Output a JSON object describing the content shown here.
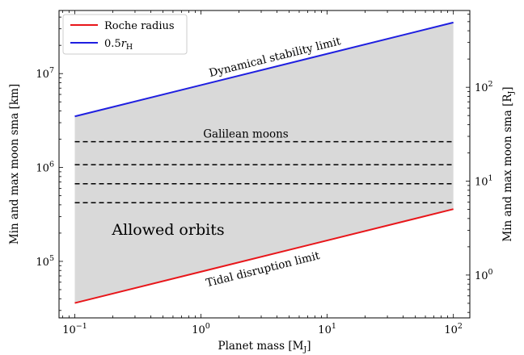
{
  "chart_data": {
    "type": "line",
    "x_scale": "log",
    "y_scale": "log",
    "xlim": [
      0.075,
      135
    ],
    "ylim": [
      25000,
      47000000
    ],
    "y2lim": [
      0.3497,
      657.5
    ],
    "xlabel": "Planet mass [M",
    "xlabel_sub": "J",
    "xlabel_close": "]",
    "ylabel": "Min and max moon sma [km]",
    "y2label": "Min and max moon sma [R",
    "y2label_sub": "J",
    "y2label_close": "]",
    "x_ticks": [
      {
        "value": 0.1,
        "base": "10",
        "exp": "−1"
      },
      {
        "value": 1,
        "base": "10",
        "exp": "0"
      },
      {
        "value": 10,
        "base": "10",
        "exp": "1"
      },
      {
        "value": 100,
        "base": "10",
        "exp": "2"
      }
    ],
    "y_ticks": [
      {
        "value": 100000,
        "base": "10",
        "exp": "5"
      },
      {
        "value": 1000000,
        "base": "10",
        "exp": "6"
      },
      {
        "value": 10000000,
        "base": "10",
        "exp": "7"
      }
    ],
    "y2_ticks": [
      {
        "value": 1,
        "base": "10",
        "exp": "0"
      },
      {
        "value": 10,
        "base": "10",
        "exp": "1"
      },
      {
        "value": 100,
        "base": "10",
        "exp": "2"
      }
    ],
    "series": [
      {
        "name": "Roche radius",
        "color": "#e8161a",
        "x": [
          0.1,
          100
        ],
        "y": [
          36000,
          360000
        ]
      },
      {
        "name_prefix": "0.5",
        "name_italic": "r",
        "name_sub": "H",
        "color": "#1f1fe0",
        "x": [
          0.1,
          100
        ],
        "y": [
          3500000,
          35000000
        ]
      }
    ],
    "fill_between": {
      "color": "#d9d9d9",
      "lower": "Roche radius",
      "upper": "0.5 r_H"
    },
    "hlines": [
      {
        "y": 1880000,
        "x": [
          0.1,
          100
        ],
        "style": "dashed"
      },
      {
        "y": 1070000,
        "x": [
          0.1,
          100
        ],
        "style": "dashed"
      },
      {
        "y": 671000,
        "x": [
          0.1,
          100
        ],
        "style": "dashed"
      },
      {
        "y": 421700,
        "x": [
          0.1,
          100
        ],
        "style": "dashed"
      }
    ],
    "annotations": {
      "dynamical": "Dynamical stability limit",
      "galilean": "Galilean moons",
      "allowed": "Allowed orbits",
      "tidal": "Tidal disruption limit"
    },
    "legend_position": "upper left",
    "grid": false
  }
}
